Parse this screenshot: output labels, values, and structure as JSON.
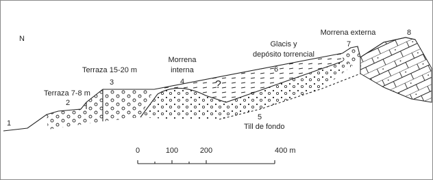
{
  "north": "N",
  "units": [
    {
      "id": "1"
    },
    {
      "id": "2",
      "label": "Terraza 7-8 m"
    },
    {
      "id": "3",
      "label": "Terraza 15-20 m"
    },
    {
      "id": "4",
      "label": [
        "Morrena",
        "interna"
      ]
    },
    {
      "id": "5",
      "label": "Till de fondo"
    },
    {
      "id": "6",
      "label": [
        "Glacis y",
        "depósito torrencial"
      ]
    },
    {
      "id": "7",
      "label": "Morrena externa"
    },
    {
      "id": "8"
    }
  ],
  "uncertain": "?",
  "scale": {
    "ticks": [
      "0",
      "100",
      "200",
      "400 m"
    ]
  }
}
